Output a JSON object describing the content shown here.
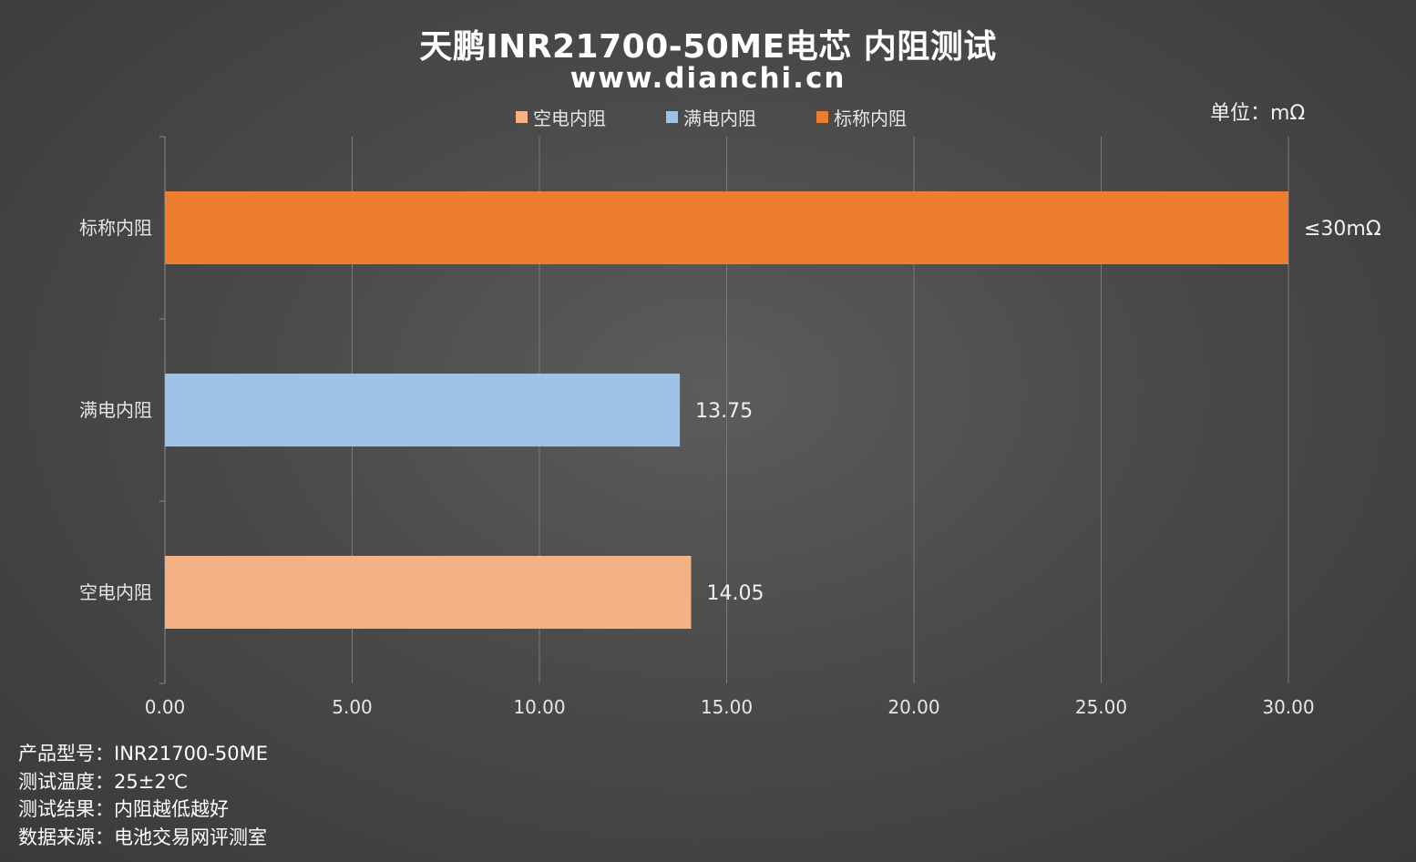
{
  "title": "天鹏INR21700-50ME电芯 内阻测试",
  "subtitle": "www.dianchi.cn",
  "unit_label": "单位：mΩ",
  "notes": [
    "产品型号：INR21700-50ME",
    "测试温度：25±2℃",
    "测试结果：内阻越低越好",
    "数据来源：电池交易网评测室"
  ],
  "chart_data": {
    "type": "bar",
    "orientation": "horizontal",
    "categories": [
      "标称内阻",
      "满电内阻",
      "空电内阻"
    ],
    "series": [
      {
        "name": "空电内阻",
        "values": [
          null,
          null,
          14.05
        ],
        "color": "#f4b183"
      },
      {
        "name": "满电内阻",
        "values": [
          null,
          13.75,
          null
        ],
        "color": "#9dc3e6"
      },
      {
        "name": "标称内阻",
        "values": [
          30,
          null,
          null
        ],
        "color": "#ed7d31"
      }
    ],
    "data_labels": [
      "≤30mΩ",
      "13.75",
      "14.05"
    ],
    "xlim": [
      0,
      30
    ],
    "x_ticks": [
      "0.00",
      "5.00",
      "10.00",
      "15.00",
      "20.00",
      "25.00",
      "30.00"
    ],
    "legend": [
      "空电内阻",
      "满电内阻",
      "标称内阻"
    ],
    "legend_position": "top",
    "grid": true
  }
}
